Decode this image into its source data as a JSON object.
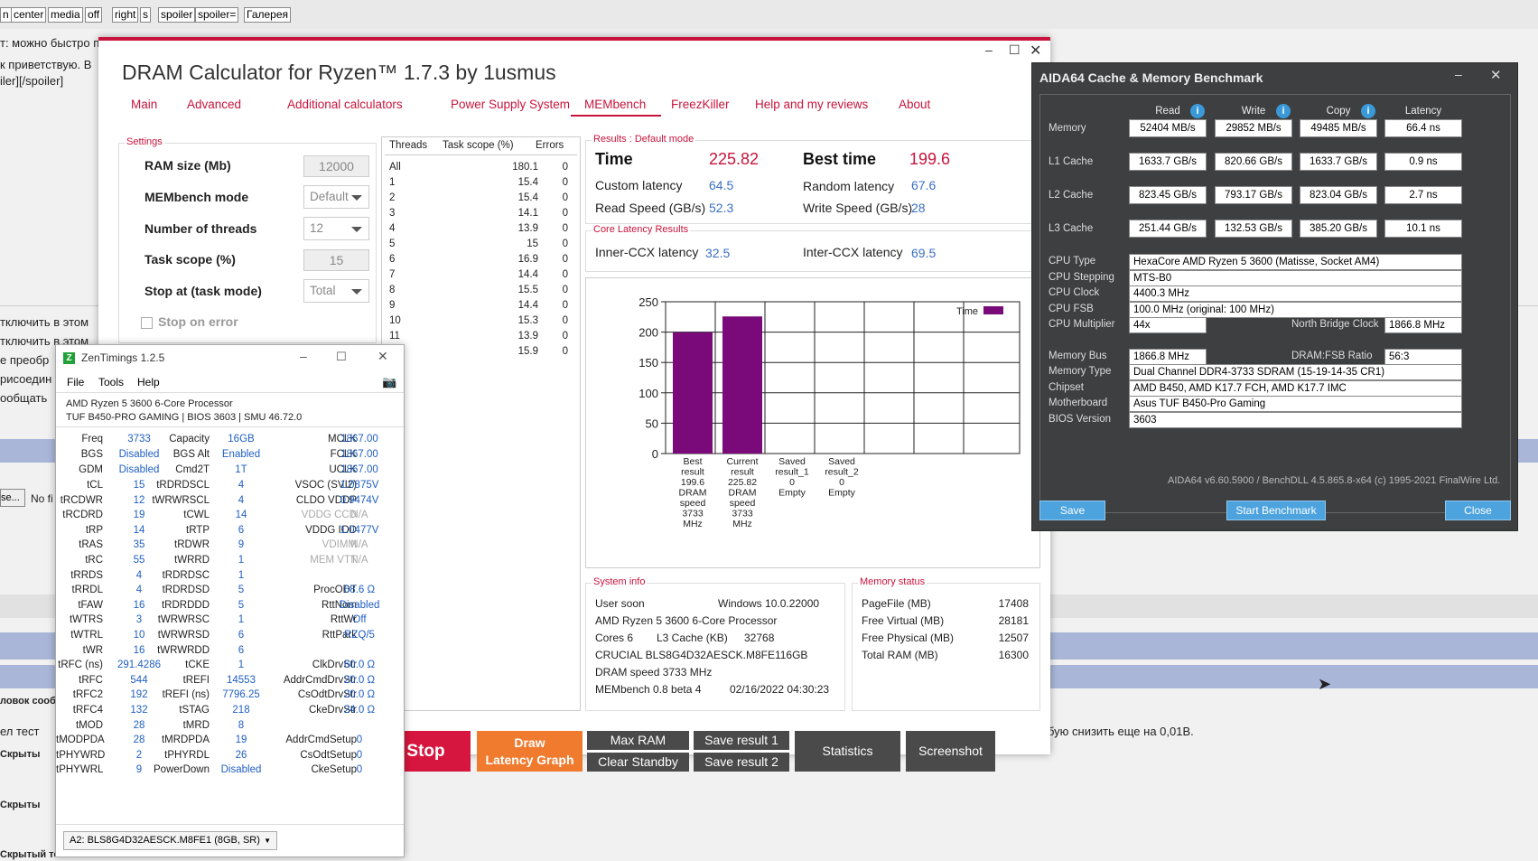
{
  "forum": {
    "tags": [
      "n",
      "center",
      "media",
      "off",
      "right",
      "s",
      "spoiler",
      "spoiler=",
      "Галерея"
    ],
    "line1": "т: можно быстро применить стили к выделенному тексту",
    "left_lines": [
      "к приветствую. В",
      "iler][/spoiler]"
    ],
    "list": [
      "тключить в этом",
      "тключить в этом",
      "е преобр",
      "рисоедин",
      "ообщать"
    ],
    "file_btn": "se...",
    "file_none": "No fi",
    "row_titles": [
      "ловок сооб",
      "ел тест",
      "Скрыты",
      "Скрыты",
      "Скрытый текст"
    ],
    "right_text": "бую снизить еще на 0,01В."
  },
  "dram": {
    "title": "DRAM Calculator for Ryzen™ 1.7.3 by 1usmus",
    "tabs": [
      "Main",
      "Advanced",
      "Additional calculators",
      "Power Supply System",
      "MEMbench",
      "FreezKiller",
      "Help and my reviews",
      "About"
    ],
    "settings": {
      "title": "Settings",
      "ram_label": "RAM size (Mb)",
      "ram_value": "12000",
      "mode_label": "MEMbench mode",
      "mode_value": "Default",
      "threads_label": "Number of threads",
      "threads_value": "12",
      "scope_label": "Task scope (%)",
      "scope_value": "15",
      "stop_label": "Stop at (task mode)",
      "stop_value": "Total",
      "stop_on_error": "Stop on error"
    },
    "threads_table": {
      "headers": [
        "Threads",
        "Task scope (%)",
        "Errors"
      ],
      "rows": [
        [
          "All",
          "180.1",
          "0"
        ],
        [
          "1",
          "15.4",
          "0"
        ],
        [
          "2",
          "15.4",
          "0"
        ],
        [
          "3",
          "14.1",
          "0"
        ],
        [
          "4",
          "13.9",
          "0"
        ],
        [
          "5",
          "15",
          "0"
        ],
        [
          "6",
          "16.9",
          "0"
        ],
        [
          "7",
          "14.4",
          "0"
        ],
        [
          "8",
          "15.5",
          "0"
        ],
        [
          "9",
          "14.4",
          "0"
        ],
        [
          "10",
          "15.3",
          "0"
        ],
        [
          "11",
          "13.9",
          "0"
        ],
        [
          "12",
          "15.9",
          "0"
        ]
      ]
    },
    "results": {
      "title": "Results : Default mode",
      "time_label": "Time",
      "time_value": "225.82",
      "best_label": "Best time",
      "best_value": "199.6",
      "custom_label": "Custom latency",
      "custom_value": "64.5",
      "random_label": "Random latency",
      "random_value": "67.6",
      "read_label": "Read Speed (GB/s)",
      "read_value": "52.3",
      "write_label": "Write Speed (GB/s)",
      "write_value": "28"
    },
    "core": {
      "title": "Core Latency Results",
      "inner_label": "Inner-CCX latency",
      "inner_value": "32.5",
      "inter_label": "Inter-CCX latency",
      "inter_value": "69.5"
    },
    "system": {
      "title": "System info",
      "user": "User soon",
      "os": "Windows 10.0.22000",
      "cpu": "AMD Ryzen 5 3600 6-Core Processor",
      "cores": "Cores 6",
      "l3_label": "L3 Cache (KB)",
      "l3_value": "32768",
      "ram": "CRUCIAL BLS8G4D32AESCK.M8FE116GB",
      "speed": "DRAM speed 3733 MHz",
      "bench": "MEMbench 0.8 beta 4",
      "date": "02/16/2022 04:30:23"
    },
    "memory": {
      "title": "Memory status",
      "rows": [
        [
          "PageFile (MB)",
          "17408"
        ],
        [
          "Free Virtual (MB)",
          "28181"
        ],
        [
          "Free Physical (MB)",
          "12507"
        ],
        [
          "Total RAM (MB)",
          "16300"
        ]
      ]
    },
    "buttons": {
      "stop": "Stop",
      "draw1": "Draw",
      "draw2": "Latency Graph",
      "maxram": "Max RAM",
      "clear": "Clear Standby",
      "save1": "Save result 1",
      "save2": "Save result 2",
      "stats": "Statistics",
      "screenshot": "Screenshot"
    },
    "colors": {
      "accent": "#c8143c",
      "bar": "#7a0a7a",
      "stop_bg": "#d6163e",
      "draw_bg": "#f07a2e",
      "btn_dark": "#4a4a4a"
    }
  },
  "chart_data": {
    "type": "bar",
    "categories": [
      [
        "Best",
        "result",
        "199.6",
        "DRAM",
        "speed",
        "3733",
        "MHz"
      ],
      [
        "Current",
        "result",
        "225.82",
        "DRAM",
        "speed",
        "3733",
        "MHz"
      ],
      [
        "Saved",
        "result_1",
        "0",
        "Empty"
      ],
      [
        "Saved",
        "result_2",
        "0",
        "Empty"
      ]
    ],
    "values": [
      199.6,
      225.82,
      0,
      0
    ],
    "ylim": [
      0,
      250
    ],
    "yticks": [
      0,
      50,
      100,
      150,
      200,
      250
    ],
    "legend": "Time",
    "legend_position": "top-right",
    "grid": true
  },
  "zen": {
    "title": "ZenTimings 1.2.5",
    "menu": [
      "File",
      "Tools",
      "Help"
    ],
    "cpu": "AMD Ryzen 5 3600 6-Core Processor",
    "board": "TUF B450-PRO GAMING | BIOS 3603 | SMU 46.72.0",
    "top": [
      [
        [
          "Freq",
          "3733"
        ],
        [
          "Capacity",
          "16GB"
        ],
        [
          "MCLK",
          "1867.00"
        ]
      ],
      [
        [
          "BGS",
          "Disabled"
        ],
        [
          "BGS Alt",
          "Enabled"
        ],
        [
          "FCLK",
          "1867.00"
        ]
      ],
      [
        [
          "GDM",
          "Disabled"
        ],
        [
          "Cmd2T",
          "1T"
        ],
        [
          "UCLK",
          "1867.00"
        ]
      ]
    ],
    "rows": [
      [
        [
          "tCL",
          "15"
        ],
        [
          "tRDRDSCL",
          "4"
        ],
        [
          "VSOC (SVI2)",
          "1.0875V"
        ]
      ],
      [
        [
          "tRCDWR",
          "12"
        ],
        [
          "tWRWRSCL",
          "4"
        ],
        [
          "CLDO VDDP",
          "0.9474V"
        ]
      ],
      [
        [
          "tRCDRD",
          "19"
        ],
        [
          "tCWL",
          "14"
        ],
        [
          "VDDG CCD",
          "N/A"
        ]
      ],
      [
        [
          "tRP",
          "14"
        ],
        [
          "tRTP",
          "6"
        ],
        [
          "VDDG IOD",
          "1.0477V"
        ]
      ],
      [
        [
          "tRAS",
          "35"
        ],
        [
          "tRDWR",
          "9"
        ],
        [
          "VDIMM",
          "N/A"
        ]
      ],
      [
        [
          "tRC",
          "55"
        ],
        [
          "tWRRD",
          "1"
        ],
        [
          "MEM VTT",
          "N/A"
        ]
      ],
      [
        [
          "tRRDS",
          "4"
        ],
        [
          "tRDRDSC",
          "1"
        ],
        [
          "",
          ""
        ]
      ],
      [
        [
          "tRRDL",
          "4"
        ],
        [
          "tRDRDSD",
          "5"
        ],
        [
          "ProcODT",
          "68.6 Ω"
        ]
      ],
      [
        [
          "tFAW",
          "16"
        ],
        [
          "tRDRDDD",
          "5"
        ],
        [
          "RttNom",
          "Disabled"
        ]
      ],
      [
        [
          "tWTRS",
          "3"
        ],
        [
          "tWRWRSC",
          "1"
        ],
        [
          "RttWr",
          "Off"
        ]
      ],
      [
        [
          "tWTRL",
          "10"
        ],
        [
          "tWRWRSD",
          "6"
        ],
        [
          "RttPark",
          "RZQ/5"
        ]
      ],
      [
        [
          "tWR",
          "16"
        ],
        [
          "tWRWRDD",
          "6"
        ],
        [
          "",
          ""
        ]
      ],
      [
        [
          "tRFC (ns)",
          "291.4286"
        ],
        [
          "tCKE",
          "1"
        ],
        [
          "ClkDrvStr",
          "60.0 Ω"
        ]
      ],
      [
        [
          "tRFC",
          "544"
        ],
        [
          "tREFI",
          "14553"
        ],
        [
          "AddrCmdDrvStr",
          "20.0 Ω"
        ]
      ],
      [
        [
          "tRFC2",
          "192"
        ],
        [
          "tREFI (ns)",
          "7796.25"
        ],
        [
          "CsOdtDrvStr",
          "20.0 Ω"
        ]
      ],
      [
        [
          "tRFC4",
          "132"
        ],
        [
          "tSTAG",
          "218"
        ],
        [
          "CkeDrvStr",
          "24.0 Ω"
        ]
      ],
      [
        [
          "tMOD",
          "28"
        ],
        [
          "tMRD",
          "8"
        ],
        [
          "",
          ""
        ]
      ],
      [
        [
          "tMODPDA",
          "28"
        ],
        [
          "tMRDPDA",
          "19"
        ],
        [
          "AddrCmdSetup",
          "0"
        ]
      ],
      [
        [
          "tPHYWRD",
          "2"
        ],
        [
          "tPHYRDL",
          "26"
        ],
        [
          "CsOdtSetup",
          "0"
        ]
      ],
      [
        [
          "tPHYWRL",
          "9"
        ],
        [
          "PowerDown",
          "Disabled"
        ],
        [
          "CkeSetup",
          "0"
        ]
      ]
    ],
    "dimm": "A2: BLS8G4D32AESCK.M8FE1 (8GB, SR)"
  },
  "aida": {
    "title": "AIDA64 Cache & Memory Benchmark",
    "cols": [
      "Read",
      "Write",
      "Copy",
      "Latency"
    ],
    "rows": [
      [
        "Memory",
        "52404 MB/s",
        "29852 MB/s",
        "49485 MB/s",
        "66.4 ns"
      ],
      [
        "L1 Cache",
        "1633.7 GB/s",
        "820.66 GB/s",
        "1633.7 GB/s",
        "0.9 ns"
      ],
      [
        "L2 Cache",
        "823.45 GB/s",
        "793.17 GB/s",
        "823.04 GB/s",
        "2.7 ns"
      ],
      [
        "L3 Cache",
        "251.44 GB/s",
        "132.53 GB/s",
        "385.20 GB/s",
        "10.1 ns"
      ]
    ],
    "cpu_type_label": "CPU Type",
    "cpu_type": "HexaCore AMD Ryzen 5 3600  (Matisse, Socket AM4)",
    "stepping_label": "CPU Stepping",
    "stepping": "MTS-B0",
    "clock_label": "CPU Clock",
    "clock": "4400.3 MHz",
    "fsb_label": "CPU FSB",
    "fsb": "100.0 MHz  (original: 100 MHz)",
    "mult_label": "CPU Multiplier",
    "mult": "44x",
    "nb_label": "North Bridge Clock",
    "nb": "1866.8 MHz",
    "bus_label": "Memory Bus",
    "bus": "1866.8 MHz",
    "ratio_label": "DRAM:FSB Ratio",
    "ratio": "56:3",
    "memtype_label": "Memory Type",
    "memtype": "Dual Channel DDR4-3733 SDRAM  (15-19-14-35 CR1)",
    "chipset_label": "Chipset",
    "chipset": "AMD B450, AMD K17.7 FCH, AMD K17.7 IMC",
    "mb_label": "Motherboard",
    "mb": "Asus TUF B450-Pro Gaming",
    "bios_label": "BIOS Version",
    "bios": "3603",
    "footer": "AIDA64 v6.60.5900 / BenchDLL 4.5.865.8-x64  (c) 1995-2021 FinalWire Ltd.",
    "save": "Save",
    "start": "Start Benchmark",
    "close": "Close"
  }
}
